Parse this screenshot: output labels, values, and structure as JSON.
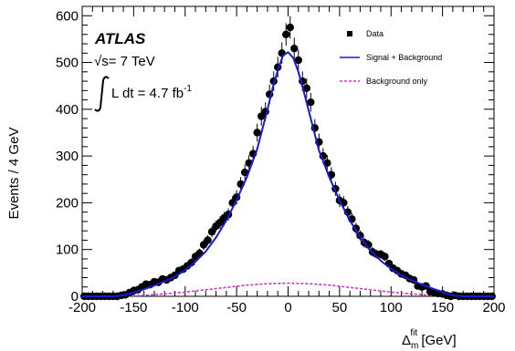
{
  "chart_data": {
    "type": "scatter",
    "experiment_label": "ATLAS",
    "energy_label_prefix": "√s",
    "energy_label_suffix": "= 7 TeV",
    "lumi_label": "L dt = 4.7 fb",
    "lumi_superscript": "-1",
    "xlabel_main": "Δ",
    "xlabel_sub": "m",
    "xlabel_sup": "fit",
    "xlabel_unit": " [GeV]",
    "ylabel": "Events / 4 GeV",
    "xlim": [
      -200,
      200
    ],
    "ylim": [
      0,
      620
    ],
    "x_ticks": [
      -200,
      -150,
      -100,
      -50,
      0,
      50,
      100,
      150,
      200
    ],
    "y_ticks": [
      0,
      100,
      200,
      300,
      400,
      500,
      600
    ],
    "grid": false,
    "legend_position": "top-right",
    "legend": [
      {
        "label": "Data",
        "style": "marker",
        "color": "#000000"
      },
      {
        "label": "Signal + Background",
        "style": "solid",
        "color": "#1a1ad6"
      },
      {
        "label": "Background only",
        "style": "dashed",
        "color": "#cc33cc"
      }
    ],
    "series": [
      {
        "name": "Data",
        "style": "points",
        "x": [
          -198,
          -194,
          -190,
          -186,
          -182,
          -178,
          -174,
          -170,
          -166,
          -162,
          -158,
          -154,
          -150,
          -146,
          -142,
          -138,
          -134,
          -130,
          -126,
          -122,
          -118,
          -114,
          -110,
          -106,
          -102,
          -98,
          -94,
          -90,
          -86,
          -82,
          -78,
          -74,
          -70,
          -66,
          -62,
          -58,
          -54,
          -50,
          -46,
          -42,
          -38,
          -34,
          -30,
          -26,
          -22,
          -18,
          -14,
          -10,
          -6,
          -2,
          2,
          6,
          10,
          14,
          18,
          22,
          26,
          30,
          34,
          38,
          42,
          46,
          50,
          54,
          58,
          62,
          66,
          70,
          74,
          78,
          82,
          86,
          90,
          94,
          98,
          102,
          106,
          110,
          114,
          118,
          122,
          126,
          130,
          134,
          138,
          142,
          146,
          150,
          154,
          158,
          162,
          166,
          170,
          174,
          178,
          182,
          186,
          190,
          194,
          198
        ],
        "y": [
          0,
          0,
          0,
          0,
          0,
          0,
          0,
          0,
          0,
          2,
          3,
          8,
          12,
          14,
          20,
          26,
          25,
          31,
          30,
          37,
          35,
          40,
          45,
          55,
          58,
          65,
          72,
          85,
          92,
          110,
          120,
          138,
          150,
          158,
          168,
          175,
          200,
          212,
          240,
          265,
          285,
          305,
          350,
          385,
          395,
          432,
          460,
          490,
          520,
          560,
          575,
          530,
          505,
          460,
          445,
          415,
          360,
          330,
          300,
          285,
          260,
          230,
          205,
          200,
          180,
          165,
          145,
          130,
          115,
          110,
          95,
          90,
          90,
          85,
          70,
          60,
          55,
          48,
          45,
          38,
          35,
          22,
          20,
          22,
          10,
          8,
          6,
          5,
          2,
          0,
          2,
          0,
          0,
          0,
          0,
          0,
          0,
          0,
          0,
          0
        ],
        "err": [
          0,
          0,
          0,
          0,
          0,
          0,
          0,
          0,
          0,
          2,
          2,
          3,
          4,
          4,
          5,
          5,
          5,
          6,
          6,
          6,
          6,
          6,
          7,
          7,
          8,
          8,
          9,
          9,
          10,
          11,
          11,
          12,
          12,
          13,
          13,
          13,
          14,
          15,
          15,
          16,
          17,
          17,
          19,
          20,
          20,
          21,
          21,
          22,
          23,
          24,
          24,
          23,
          22,
          21,
          21,
          20,
          19,
          18,
          17,
          17,
          16,
          15,
          14,
          14,
          13,
          13,
          12,
          11,
          11,
          10,
          10,
          9,
          9,
          9,
          8,
          8,
          7,
          7,
          7,
          6,
          6,
          5,
          4,
          5,
          3,
          3,
          2,
          2,
          1,
          0,
          1,
          0,
          0,
          0,
          0,
          0,
          0,
          0,
          0,
          0
        ]
      },
      {
        "name": "Signal + Background",
        "style": "line",
        "x": [
          -200,
          -190,
          -180,
          -170,
          -160,
          -150,
          -140,
          -130,
          -120,
          -110,
          -100,
          -90,
          -80,
          -70,
          -60,
          -50,
          -40,
          -30,
          -20,
          -15,
          -10,
          -5,
          0,
          5,
          10,
          15,
          20,
          30,
          40,
          50,
          60,
          70,
          80,
          90,
          100,
          110,
          120,
          130,
          140,
          150,
          160,
          170,
          180,
          190,
          200
        ],
        "y": [
          0,
          0,
          0,
          0,
          2,
          8,
          15,
          23,
          32,
          42,
          56,
          74,
          96,
          126,
          162,
          206,
          255,
          315,
          400,
          445,
          483,
          515,
          522,
          510,
          480,
          440,
          397,
          312,
          255,
          205,
          162,
          127,
          98,
          76,
          59,
          45,
          34,
          25,
          17,
          9,
          2,
          0,
          0,
          0,
          0
        ]
      },
      {
        "name": "Background only",
        "style": "dashed",
        "x": [
          -200,
          -180,
          -160,
          -140,
          -120,
          -100,
          -80,
          -60,
          -40,
          -20,
          0,
          20,
          40,
          60,
          80,
          100,
          120,
          140,
          160,
          180,
          200
        ],
        "y": [
          0,
          0,
          0.5,
          2,
          5,
          9,
          14,
          19,
          24,
          27,
          28,
          27,
          24,
          19,
          14,
          9,
          5,
          2,
          0.5,
          0,
          0
        ]
      }
    ]
  }
}
